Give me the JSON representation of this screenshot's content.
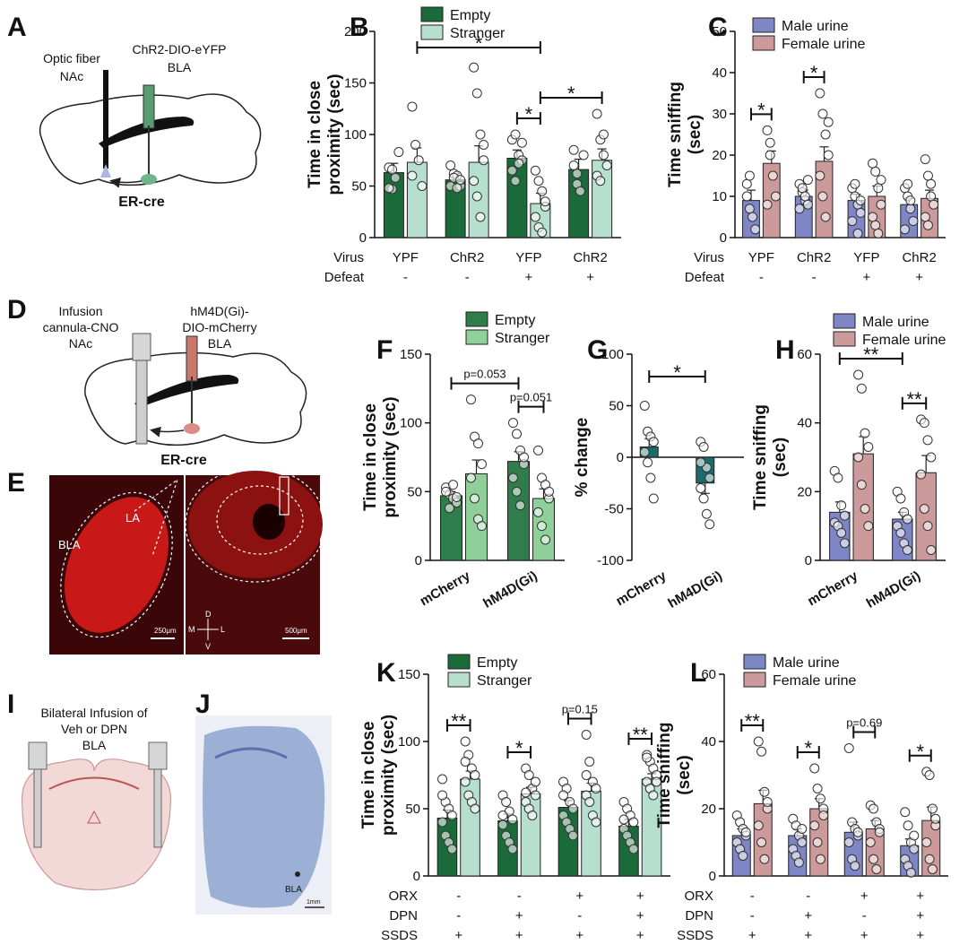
{
  "colors": {
    "empty": "#1b6b3a",
    "stranger": "#b7dfcf",
    "empty_light": "#2e7d4a",
    "stranger_light": "#8fcf9a",
    "male": "#7f86c6",
    "female": "#cc9a9a",
    "g_mcherry": "#1b6b6b",
    "g_hm4d": "#b9d8e6"
  },
  "panels": {
    "A": {
      "label": "A",
      "fiber": "Optic fiber",
      "fiber_target": "NAc",
      "virus": "ChR2-DIO-eYFP",
      "virus_target": "BLA",
      "mouse": "ER-cre"
    },
    "D": {
      "label": "D",
      "line1": "Infusion",
      "line2": "cannula-CNO",
      "line3": "NAc",
      "virus1": "hM4D(Gi)-",
      "virus2": "DIO-mCherry",
      "virus3": "BLA",
      "mouse": "ER-cre"
    },
    "E": {
      "label": "E",
      "bla": "BLA",
      "la": "LA",
      "scale1": "250μm",
      "scale2": "500μm",
      "d": "D",
      "v": "V",
      "m": "M",
      "l": "L"
    },
    "I": {
      "label": "I",
      "line1": "Bilateral Infusion of",
      "line2": "Veh or DPN",
      "line3": "BLA"
    },
    "J": {
      "label": "J",
      "bla": "BLA",
      "scale": "1mm"
    }
  },
  "row_labels": {
    "virus": "Virus",
    "defeat": "Defeat",
    "orx": "ORX",
    "dpn": "DPN",
    "ssds": "SSDS"
  },
  "chart_data": [
    {
      "id": "B",
      "type": "bar",
      "label": "B",
      "ylabel": "Time in close proximity (sec)",
      "ylim": [
        0,
        200
      ],
      "yticks": [
        0,
        50,
        100,
        150,
        200
      ],
      "legend": [
        "Empty",
        "Stranger"
      ],
      "virus": [
        "YPF",
        "ChR2",
        "YFP",
        "ChR2"
      ],
      "defeat": [
        "-",
        "-",
        "+",
        "+"
      ],
      "series": [
        {
          "name": "Empty",
          "values": [
            63,
            56,
            77,
            66
          ],
          "sem": [
            9,
            6,
            8,
            10
          ],
          "points": [
            [
              68,
              47,
              58,
              83,
              48,
              66
            ],
            [
              50,
              62,
              60,
              50,
              70,
              58,
              48,
              56
            ],
            [
              95,
              100,
              80,
              75,
              65,
              55,
              72,
              92
            ],
            [
              70,
              52,
              45,
              80,
              85,
              62
            ]
          ]
        },
        {
          "name": "Stranger",
          "values": [
            73,
            73,
            33,
            75
          ],
          "sem": [
            14,
            16,
            10,
            11
          ],
          "points": [
            [
              127,
              90,
              75,
              50,
              60
            ],
            [
              165,
              140,
              100,
              75,
              55,
              40,
              20,
              90
            ],
            [
              65,
              55,
              45,
              30,
              20,
              10,
              5,
              35
            ],
            [
              120,
              95,
              80,
              70,
              60,
              55,
              100
            ]
          ]
        }
      ],
      "significance": [
        {
          "text": "*",
          "from": [
            0,
            1
          ],
          "to": [
            2,
            1
          ]
        },
        {
          "text": "*",
          "from": [
            2,
            0
          ],
          "to": [
            2,
            1
          ]
        },
        {
          "text": "*",
          "from": [
            2,
            1
          ],
          "to": [
            3,
            1
          ]
        }
      ]
    },
    {
      "id": "C",
      "type": "bar",
      "label": "C",
      "ylabel": "Time sniffing (sec)",
      "ylim": [
        0,
        50
      ],
      "yticks": [
        0,
        10,
        20,
        30,
        40,
        50
      ],
      "legend": [
        "Male urine",
        "Female urine"
      ],
      "virus": [
        "YPF",
        "ChR2",
        "YFP",
        "ChR2"
      ],
      "defeat": [
        "-",
        "-",
        "+",
        "+"
      ],
      "series": [
        {
          "name": "Male urine",
          "values": [
            9,
            10,
            9,
            8
          ],
          "sem": [
            2.5,
            1.5,
            1.5,
            1.5
          ],
          "points": [
            [
              13,
              7,
              5,
              2,
              10,
              15
            ],
            [
              13,
              11,
              9,
              8,
              7,
              12,
              10,
              14
            ],
            [
              12,
              10,
              8,
              6,
              4,
              13,
              1,
              9
            ],
            [
              12,
              10,
              7,
              4,
              2,
              13,
              9
            ]
          ]
        },
        {
          "name": "Female urine",
          "values": [
            18,
            18.5,
            10,
            9.5
          ],
          "sem": [
            3,
            3.5,
            2.5,
            2
          ],
          "points": [
            [
              26,
              23,
              15,
              10,
              8,
              20
            ],
            [
              35,
              30,
              25,
              20,
              15,
              10,
              5,
              28
            ],
            [
              18,
              16,
              12,
              8,
              5,
              3,
              1,
              14
            ],
            [
              19,
              15,
              10,
              8,
              5,
              3,
              13
            ]
          ]
        }
      ],
      "significance": [
        {
          "text": "*",
          "from": [
            0,
            0
          ],
          "to": [
            0,
            1
          ]
        },
        {
          "text": "*",
          "from": [
            1,
            0
          ],
          "to": [
            1,
            1
          ]
        }
      ]
    },
    {
      "id": "F",
      "type": "bar",
      "label": "F",
      "ylabel": "Time in close proximity (sec)",
      "ylim": [
        0,
        150
      ],
      "yticks": [
        0,
        50,
        100,
        150
      ],
      "legend": [
        "Empty",
        "Stranger"
      ],
      "categories": [
        "mCherry",
        "hM4D(Gi)"
      ],
      "series": [
        {
          "name": "Empty",
          "values": [
            47,
            72
          ],
          "sem": [
            3,
            7
          ],
          "points": [
            [
              53,
              48,
              45,
              42,
              50,
              38,
              55,
              46
            ],
            [
              100,
              92,
              80,
              70,
              60,
              50,
              40,
              75
            ]
          ]
        },
        {
          "name": "Stranger",
          "values": [
            63,
            45
          ],
          "sem": [
            10,
            7
          ],
          "points": [
            [
              117,
              90,
              85,
              70,
              60,
              45,
              30,
              25
            ],
            [
              80,
              60,
              55,
              45,
              35,
              25,
              15,
              50
            ]
          ]
        }
      ],
      "significance": [
        {
          "text": "p=0.053",
          "from": [
            0,
            0
          ],
          "to": [
            1,
            0
          ]
        },
        {
          "text": "p=0.051",
          "from": [
            1,
            0
          ],
          "to": [
            1,
            1
          ]
        }
      ]
    },
    {
      "id": "G",
      "type": "bar",
      "label": "G",
      "ylabel": "% change",
      "ylim": [
        -100,
        100
      ],
      "yticks": [
        -100,
        -50,
        0,
        50,
        100
      ],
      "categories": [
        "mCherry",
        "hM4D(Gi)"
      ],
      "series": [
        {
          "name": "",
          "values": [
            10,
            -25
          ],
          "sem": [
            8,
            10
          ],
          "points": [
            [
              50,
              25,
              20,
              15,
              5,
              -5,
              -20,
              -40
            ],
            [
              15,
              10,
              -10,
              -20,
              -30,
              -40,
              -55,
              -65,
              -5
            ]
          ]
        }
      ],
      "significance": [
        {
          "text": "*",
          "from": [
            0,
            0
          ],
          "to": [
            1,
            0
          ]
        }
      ]
    },
    {
      "id": "H",
      "type": "bar",
      "label": "H",
      "ylabel": "Time sniffing (sec)",
      "ylim": [
        0,
        60
      ],
      "yticks": [
        0,
        20,
        40,
        60
      ],
      "legend": [
        "Male urine",
        "Female urine"
      ],
      "categories": [
        "mCherry",
        "hM4D(Gi)"
      ],
      "series": [
        {
          "name": "Male urine",
          "values": [
            14,
            12
          ],
          "sem": [
            3,
            2
          ],
          "points": [
            [
              26,
              24,
              16,
              13,
              11,
              10,
              8,
              5
            ],
            [
              20,
              18,
              14,
              12,
              10,
              8,
              5,
              3
            ]
          ]
        },
        {
          "name": "Female urine",
          "values": [
            31,
            25.5
          ],
          "sem": [
            5,
            5
          ],
          "points": [
            [
              54,
              50,
              37,
              33,
              30,
              22,
              15,
              10
            ],
            [
              41,
              40,
              35,
              30,
              25,
              15,
              10,
              3
            ]
          ]
        }
      ],
      "significance": [
        {
          "text": "**",
          "from": [
            0,
            0
          ],
          "to": [
            1,
            0
          ]
        },
        {
          "text": "**",
          "from": [
            1,
            0
          ],
          "to": [
            1,
            1
          ]
        }
      ]
    },
    {
      "id": "K",
      "type": "bar",
      "label": "K",
      "ylabel": "Time in close proximity (sec)",
      "ylim": [
        0,
        150
      ],
      "yticks": [
        0,
        50,
        100,
        150
      ],
      "legend": [
        "Empty",
        "Stranger"
      ],
      "orx": [
        "-",
        "-",
        "+",
        "+"
      ],
      "dpn": [
        "-",
        "+",
        "-",
        "+"
      ],
      "ssds": [
        "+",
        "+",
        "+",
        "+"
      ],
      "series": [
        {
          "name": "Empty",
          "values": [
            43,
            41,
            51,
            37
          ],
          "sem": [
            6,
            5,
            5,
            5
          ],
          "points": [
            [
              72,
              55,
              50,
              45,
              40,
              30,
              25,
              20,
              60
            ],
            [
              60,
              55,
              48,
              42,
              38,
              30,
              25,
              20,
              45
            ],
            [
              70,
              65,
              55,
              50,
              45,
              40,
              35,
              30,
              60
            ],
            [
              55,
              50,
              45,
              40,
              35,
              30,
              25,
              20,
              42
            ]
          ]
        },
        {
          "name": "Stranger",
          "values": [
            72,
            61,
            63,
            72
          ],
          "sem": [
            6,
            5,
            6,
            4
          ],
          "points": [
            [
              100,
              90,
              80,
              75,
              70,
              60,
              55,
              50,
              85
            ],
            [
              80,
              75,
              65,
              60,
              55,
              50,
              45,
              70,
              62
            ],
            [
              105,
              85,
              70,
              65,
              60,
              55,
              45,
              40,
              75
            ],
            [
              90,
              85,
              80,
              75,
              70,
              65,
              60,
              70,
              88
            ]
          ]
        }
      ],
      "significance": [
        {
          "text": "**",
          "from": [
            0,
            0
          ],
          "to": [
            0,
            1
          ]
        },
        {
          "text": "*",
          "from": [
            1,
            0
          ],
          "to": [
            1,
            1
          ]
        },
        {
          "text": "p=0.15",
          "from": [
            2,
            0
          ],
          "to": [
            2,
            1
          ]
        },
        {
          "text": "**",
          "from": [
            3,
            0
          ],
          "to": [
            3,
            1
          ]
        }
      ]
    },
    {
      "id": "L",
      "type": "bar",
      "label": "L",
      "ylabel": "Time sniffing (sec)",
      "ylim": [
        0,
        60
      ],
      "yticks": [
        0,
        20,
        40,
        60
      ],
      "legend": [
        "Male urine",
        "Female urine"
      ],
      "orx": [
        "-",
        "-",
        "+",
        "+"
      ],
      "dpn": [
        "-",
        "+",
        "-",
        "+"
      ],
      "ssds": [
        "+",
        "+",
        "+",
        "+"
      ],
      "series": [
        {
          "name": "Male urine",
          "values": [
            12,
            12,
            13,
            9
          ],
          "sem": [
            2,
            2,
            3,
            2
          ],
          "points": [
            [
              18,
              16,
              14,
              12,
              10,
              8,
              6,
              13
            ],
            [
              17,
              15,
              12,
              10,
              8,
              6,
              4,
              14
            ],
            [
              38,
              16,
              14,
              12,
              10,
              5,
              3,
              13
            ],
            [
              19,
              15,
              10,
              8,
              5,
              3,
              1,
              12
            ]
          ]
        },
        {
          "name": "Female urine",
          "values": [
            21.5,
            20,
            14,
            16.5
          ],
          "sem": [
            4,
            3,
            2.5,
            4
          ],
          "points": [
            [
              40,
              37,
              25,
              20,
              15,
              10,
              5,
              22
            ],
            [
              32,
              26,
              23,
              20,
              15,
              10,
              5,
              18
            ],
            [
              21,
              20,
              16,
              14,
              10,
              5,
              2,
              13
            ],
            [
              31,
              30,
              20,
              15,
              10,
              5,
              2,
              17
            ]
          ]
        }
      ],
      "significance": [
        {
          "text": "**",
          "from": [
            0,
            0
          ],
          "to": [
            0,
            1
          ]
        },
        {
          "text": "*",
          "from": [
            1,
            0
          ],
          "to": [
            1,
            1
          ]
        },
        {
          "text": "p=0.69",
          "from": [
            2,
            0
          ],
          "to": [
            2,
            1
          ]
        },
        {
          "text": "*",
          "from": [
            3,
            0
          ],
          "to": [
            3,
            1
          ]
        }
      ]
    }
  ]
}
